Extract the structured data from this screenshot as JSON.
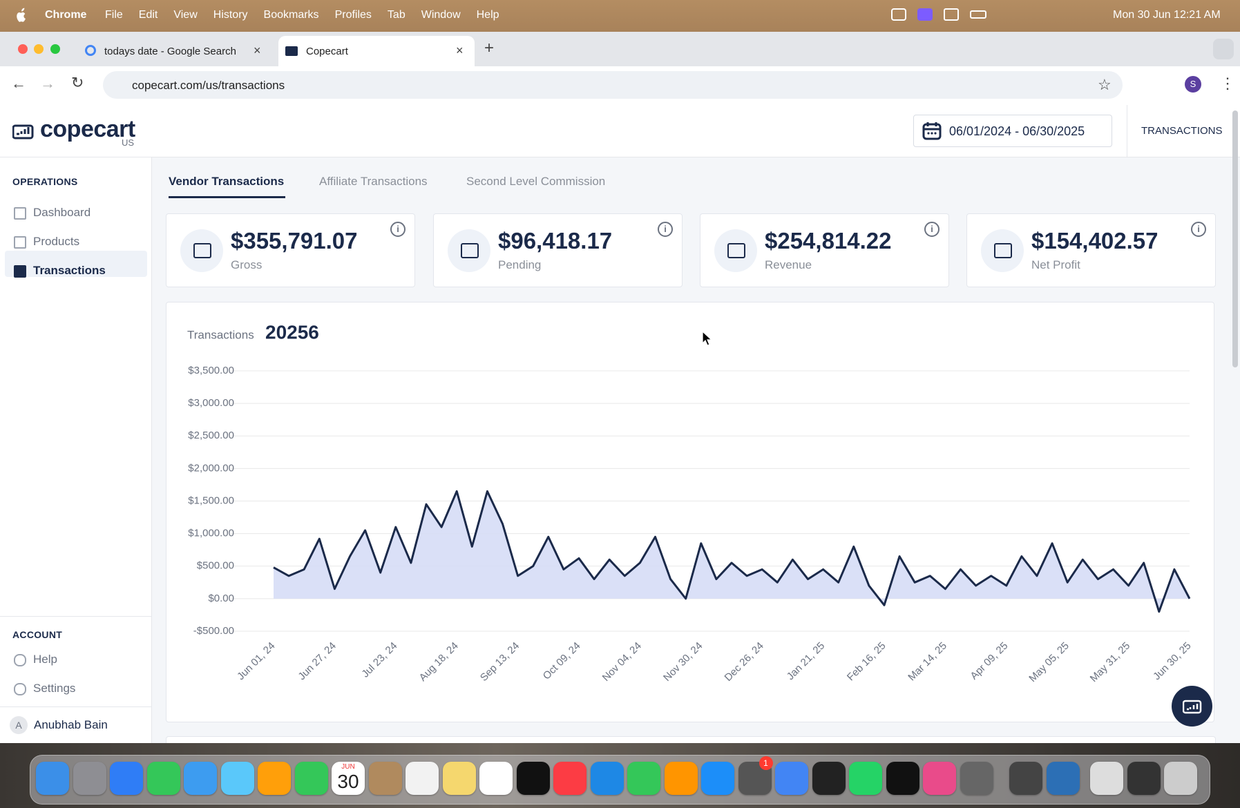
{
  "menubar": {
    "app": "Chrome",
    "items": [
      "File",
      "Edit",
      "View",
      "History",
      "Bookmarks",
      "Profiles",
      "Tab",
      "Window",
      "Help"
    ],
    "clock": "Mon 30 Jun 12:21 AM"
  },
  "browser": {
    "tabs": [
      "todays date - Google Search",
      "Copecart"
    ],
    "url": "copecart.com/us/transactions",
    "avatar": "S"
  },
  "header": {
    "logo": "copecart",
    "region": "US",
    "date_range": "06/01/2024 - 06/30/2025",
    "nav": "TRANSACTIONS"
  },
  "sidebar": {
    "operations_title": "OPERATIONS",
    "operations": [
      "Dashboard",
      "Products",
      "Transactions"
    ],
    "account_title": "ACCOUNT",
    "account": [
      "Help",
      "Settings"
    ],
    "user": {
      "initial": "A",
      "name": "Anubhab Bain"
    }
  },
  "page_tabs": [
    "Vendor Transactions",
    "Affiliate Transactions",
    "Second Level Commission"
  ],
  "stats": [
    {
      "value": "$355,791.07",
      "label": "Gross"
    },
    {
      "value": "$96,418.17",
      "label": "Pending"
    },
    {
      "value": "$254,814.22",
      "label": "Revenue"
    },
    {
      "value": "$154,402.57",
      "label": "Net Profit"
    }
  ],
  "chart_data": {
    "type": "area",
    "title": "Transactions",
    "total": "20256",
    "color": "#1b2a4a",
    "fill": "#d3dbf6",
    "categories": [
      "Jun 01, 24",
      null,
      null,
      null,
      "Jun 27, 24",
      null,
      null,
      null,
      "Jul 23, 24",
      null,
      null,
      null,
      "Aug 18, 24",
      null,
      null,
      null,
      "Sep 13, 24",
      null,
      null,
      null,
      "Oct 09, 24",
      null,
      null,
      null,
      "Nov 04, 24",
      null,
      null,
      null,
      "Nov 30, 24",
      null,
      null,
      null,
      "Dec 26, 24",
      null,
      null,
      null,
      "Jan 21, 25",
      null,
      null,
      null,
      "Feb 16, 25",
      null,
      null,
      null,
      "Mar 14, 25",
      null,
      null,
      null,
      "Apr 09, 25",
      null,
      null,
      null,
      "May 05, 25",
      null,
      null,
      null,
      "May 31, 25",
      null,
      null,
      null,
      "Jun 30, 25"
    ],
    "values": [
      480,
      350,
      450,
      920,
      150,
      650,
      1050,
      400,
      1100,
      550,
      1450,
      1100,
      1650,
      800,
      1650,
      1150,
      350,
      500,
      950,
      450,
      620,
      300,
      600,
      350,
      550,
      950,
      300,
      0,
      850,
      300,
      550,
      350,
      450,
      250,
      600,
      300,
      450,
      250,
      800,
      200,
      -100,
      650,
      250,
      350,
      150,
      450,
      200,
      350,
      200,
      650,
      350,
      850,
      250,
      600,
      300,
      450,
      200,
      550,
      -200,
      450,
      0
    ],
    "ylim": [
      -500,
      3500
    ],
    "yticks": [
      {
        "value": -500,
        "label": "-$500.00"
      },
      {
        "value": 0,
        "label": "$0.00"
      },
      {
        "value": 500,
        "label": "$500.00"
      },
      {
        "value": 1000,
        "label": "$1,000.00"
      },
      {
        "value": 1500,
        "label": "$1,500.00"
      },
      {
        "value": 2000,
        "label": "$2,000.00"
      },
      {
        "value": 2500,
        "label": "$2,500.00"
      },
      {
        "value": 3000,
        "label": "$3,000.00"
      },
      {
        "value": 3500,
        "label": "$3,500.00"
      }
    ],
    "grid": true
  },
  "dock": {
    "calendar_month": "JUN",
    "calendar_day": "30",
    "badge": "1"
  }
}
